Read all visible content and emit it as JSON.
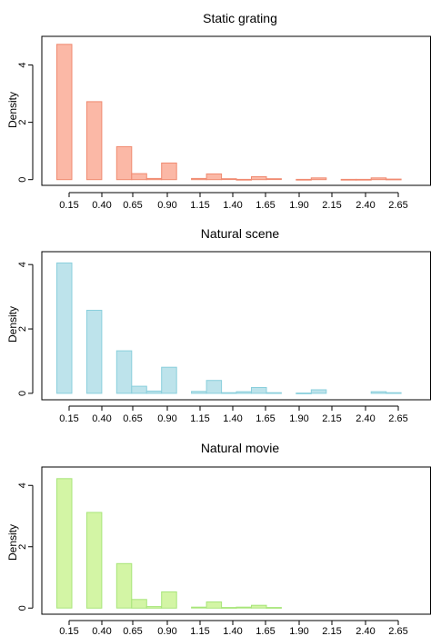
{
  "chart_data": [
    {
      "type": "bar",
      "title": "Static grating",
      "ylabel": "Density",
      "xlabel": "",
      "x_ticks": [
        "0.15",
        "0.40",
        "0.65",
        "0.90",
        "1.15",
        "1.40",
        "1.65",
        "1.90",
        "2.15",
        "2.40",
        "2.65"
      ],
      "y_ticks": [
        "0",
        "2",
        "4"
      ],
      "xlim": [
        0.1,
        2.7
      ],
      "ylim": [
        -0.2,
        5.0
      ],
      "bin_width": 0.1,
      "bin_starts": [
        0.2,
        0.3,
        0.4,
        0.5,
        0.6,
        0.7,
        0.8,
        0.9,
        1.0,
        1.1,
        1.2,
        1.3,
        1.4,
        1.5,
        1.6,
        1.7,
        1.8,
        1.9,
        2.0,
        2.1,
        2.2,
        2.3,
        2.4
      ],
      "values": [
        4.72,
        0.0,
        2.72,
        0.0,
        1.15,
        0.21,
        0.04,
        0.58,
        0.0,
        0.04,
        0.2,
        0.03,
        0.01,
        0.1,
        0.03,
        0.0,
        0.01,
        0.06,
        0.0,
        0.01,
        0.01,
        0.06,
        0.02
      ],
      "fill": "#fbb8a6",
      "stroke": "#f08a70"
    },
    {
      "type": "bar",
      "title": "Natural scene",
      "ylabel": "Density",
      "xlabel": "",
      "x_ticks": [
        "0.15",
        "0.40",
        "0.65",
        "0.90",
        "1.15",
        "1.40",
        "1.65",
        "1.90",
        "2.15",
        "2.40",
        "2.65"
      ],
      "y_ticks": [
        "0",
        "2",
        "4"
      ],
      "xlim": [
        0.1,
        2.7
      ],
      "ylim": [
        -0.2,
        4.4
      ],
      "bin_width": 0.1,
      "bin_starts": [
        0.2,
        0.3,
        0.4,
        0.5,
        0.6,
        0.7,
        0.8,
        0.9,
        1.0,
        1.1,
        1.2,
        1.3,
        1.4,
        1.5,
        1.6,
        1.7,
        1.8,
        1.9,
        2.0,
        2.1,
        2.2,
        2.3,
        2.4
      ],
      "values": [
        4.05,
        0.0,
        2.58,
        0.0,
        1.32,
        0.22,
        0.07,
        0.81,
        0.0,
        0.06,
        0.4,
        0.02,
        0.05,
        0.18,
        0.02,
        0.0,
        0.01,
        0.11,
        0.0,
        0.0,
        0.0,
        0.05,
        0.02
      ],
      "fill": "#bde3eb",
      "stroke": "#8acfdc"
    },
    {
      "type": "bar",
      "title": "Natural movie",
      "ylabel": "Density",
      "xlabel": "",
      "x_ticks": [
        "0.15",
        "0.40",
        "0.65",
        "0.90",
        "1.15",
        "1.40",
        "1.65",
        "1.90",
        "2.15",
        "2.40",
        "2.65"
      ],
      "y_ticks": [
        "0",
        "2",
        "4"
      ],
      "xlim": [
        0.1,
        2.7
      ],
      "ylim": [
        -0.2,
        4.6
      ],
      "bin_width": 0.1,
      "bin_starts": [
        0.2,
        0.3,
        0.4,
        0.5,
        0.6,
        0.7,
        0.8,
        0.9,
        1.0,
        1.1,
        1.2,
        1.3,
        1.4,
        1.5,
        1.6
      ],
      "values": [
        4.22,
        0.0,
        3.12,
        0.0,
        1.45,
        0.28,
        0.05,
        0.53,
        0.0,
        0.03,
        0.2,
        0.02,
        0.03,
        0.09,
        0.02
      ],
      "fill": "#d3f5a5",
      "stroke": "#a8e57a"
    }
  ]
}
